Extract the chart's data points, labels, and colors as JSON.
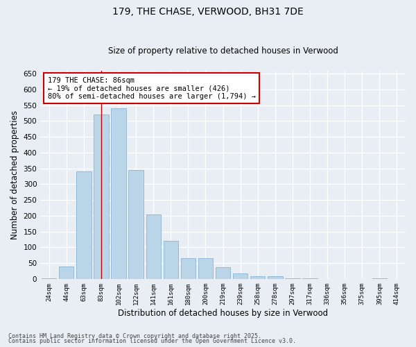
{
  "title": "179, THE CHASE, VERWOOD, BH31 7DE",
  "subtitle": "Size of property relative to detached houses in Verwood",
  "xlabel": "Distribution of detached houses by size in Verwood",
  "ylabel": "Number of detached properties",
  "bar_color": "#bad4e8",
  "bar_edge_color": "#8ab4d4",
  "background_color": "#e8eef4",
  "grid_color": "#ffffff",
  "categories": [
    "24sqm",
    "44sqm",
    "63sqm",
    "83sqm",
    "102sqm",
    "122sqm",
    "141sqm",
    "161sqm",
    "180sqm",
    "200sqm",
    "219sqm",
    "239sqm",
    "258sqm",
    "278sqm",
    "297sqm",
    "317sqm",
    "336sqm",
    "356sqm",
    "375sqm",
    "395sqm",
    "414sqm"
  ],
  "values": [
    2,
    40,
    340,
    520,
    540,
    345,
    205,
    120,
    65,
    65,
    38,
    18,
    9,
    9,
    1,
    1,
    0,
    0,
    0,
    1,
    0
  ],
  "ylim": [
    0,
    660
  ],
  "yticks": [
    0,
    50,
    100,
    150,
    200,
    250,
    300,
    350,
    400,
    450,
    500,
    550,
    600,
    650
  ],
  "vline_x_idx": 3,
  "vline_color": "#cc0000",
  "annotation_text": "179 THE CHASE: 86sqm\n← 19% of detached houses are smaller (426)\n80% of semi-detached houses are larger (1,794) →",
  "annotation_box_color": "#ffffff",
  "annotation_box_edge_color": "#cc0000",
  "footer_line1": "Contains HM Land Registry data © Crown copyright and database right 2025.",
  "footer_line2": "Contains public sector information licensed under the Open Government Licence v3.0."
}
